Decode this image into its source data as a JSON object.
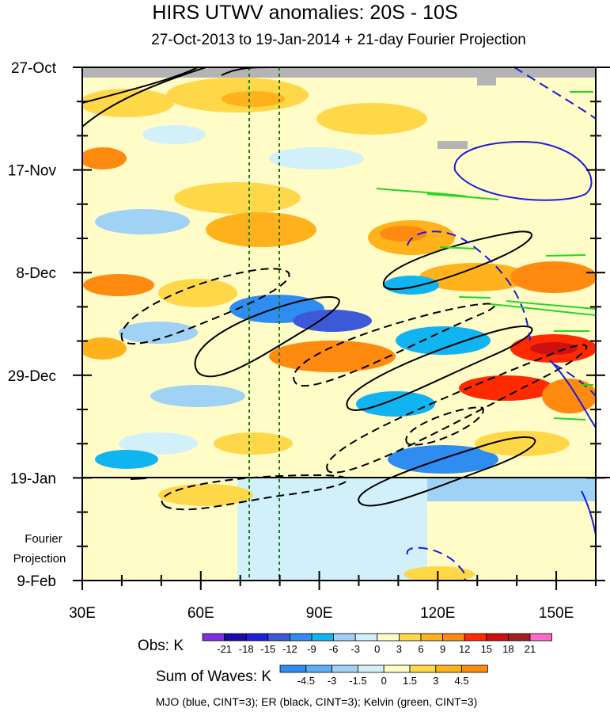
{
  "title": "HIRS UTWV anomalies: 20S - 10S",
  "subtitle": "27-Oct-2013 to 19-Jan-2014 + 21-day Fourier Projection",
  "projection_label_line1": "Fourier",
  "projection_label_line2": "Projection",
  "obs_label": "Obs: K",
  "waves_label": "Sum of Waves: K",
  "footer": "MJO (blue, CINT=3); ER (black, CINT=3); Kelvin (green, CINT=3)",
  "colors": {
    "obs_colorbar": [
      "#7f2fe0",
      "#1c0aa6",
      "#2020d8",
      "#3c5ad8",
      "#2f8cf0",
      "#10b4f0",
      "#a0d2f5",
      "#d2f0fa",
      "#fffcc8",
      "#ffd84a",
      "#ffb21c",
      "#ff8a10",
      "#ff2a00",
      "#d01010",
      "#a02020",
      "#ff6ac8"
    ],
    "waves_colorbar": [
      "#2f8cf0",
      "#5aaef5",
      "#a0d2f5",
      "#d2f0fa",
      "#fffcc8",
      "#ffd84a",
      "#ffb21c",
      "#ff8a10"
    ],
    "mjo": "#1c1cdc",
    "er": "#000000",
    "kelvin": "#20d820",
    "reference_lines": "#1a7a1a",
    "missing": "#b4b4b4"
  },
  "chart_data": {
    "type": "heatmap",
    "title": "HIRS UTWV anomalies: 20S - 10S",
    "subtitle": "27-Oct-2013 to 19-Jan-2014 + 21-day Fourier Projection",
    "x_ticks": [
      "30E",
      "60E",
      "90E",
      "120E",
      "150E"
    ],
    "x_tick_values": [
      30,
      60,
      90,
      120,
      150
    ],
    "xlim": [
      30,
      160
    ],
    "y_ticks": [
      "27-Oct",
      "17-Nov",
      "8-Dec",
      "29-Dec",
      "19-Jan",
      "9-Feb"
    ],
    "y_tick_days": [
      0,
      21,
      42,
      63,
      84,
      105
    ],
    "observation_end": "19-Jan",
    "projection_end": "9-Feb",
    "reference_longitudes": [
      72.5,
      80
    ],
    "obs_colorbar": {
      "label": "Obs: K",
      "levels": [
        "-21",
        "-18",
        "-15",
        "-12",
        "-9",
        "-6",
        "-3",
        "0",
        "3",
        "6",
        "9",
        "12",
        "15",
        "18",
        "21"
      ]
    },
    "waves_colorbar": {
      "label": "Sum of Waves: K",
      "levels": [
        "-4.5",
        "-3",
        "-1.5",
        "0",
        "1.5",
        "3",
        "4.5"
      ]
    },
    "wave_contours": [
      {
        "name": "MJO",
        "color": "blue",
        "cint": 3
      },
      {
        "name": "ER",
        "color": "black",
        "cint": 3
      },
      {
        "name": "Kelvin",
        "color": "green",
        "cint": 3
      }
    ]
  }
}
